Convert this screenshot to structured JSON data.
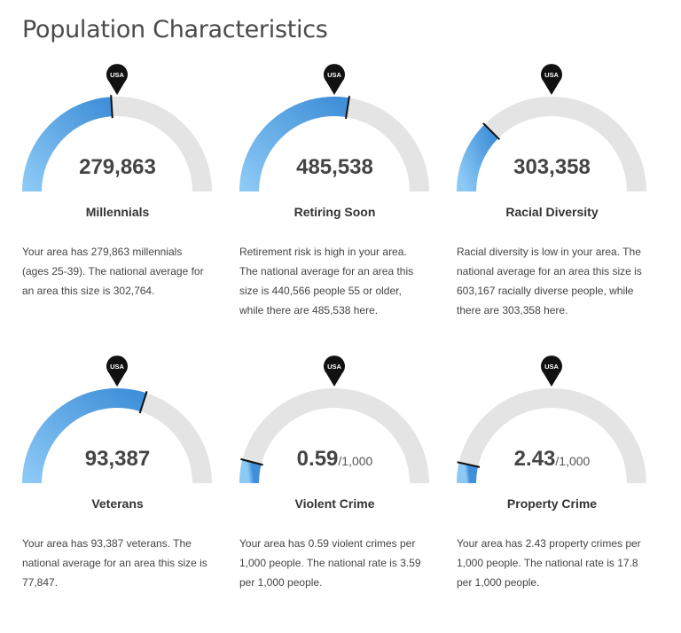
{
  "page": {
    "title": "Population Characteristics"
  },
  "marker_label": "USA",
  "colors": {
    "fill_light": "#8cc9f5",
    "fill_dark": "#3f8fd9",
    "track": "#e4e4e4",
    "pin": "#111111"
  },
  "cards": [
    {
      "value": "279,863",
      "unit": "",
      "label": "Millennials",
      "description": "Your area has 279,863 millennials (ages 25-39). The national average for an area this size is 302,764.",
      "fill_fraction": 0.48,
      "national_fraction": 0.5
    },
    {
      "value": "485,538",
      "unit": "",
      "label": "Retiring Soon",
      "description": "Retirement risk is high in your area. The national average for an area this size is 440,566 people 55 or older, while there are 485,538 here.",
      "fill_fraction": 0.55,
      "national_fraction": 0.5
    },
    {
      "value": "303,358",
      "unit": "",
      "label": "Racial Diversity",
      "description": "Racial diversity is low in your area. The national average for an area this size is 603,167 racially diverse people, while there are 303,358 here.",
      "fill_fraction": 0.25,
      "national_fraction": 0.5
    },
    {
      "value": "93,387",
      "unit": "",
      "label": "Veterans",
      "description": "Your area has 93,387 veterans. The national average for an area this size is 77,847.",
      "fill_fraction": 0.6,
      "national_fraction": 0.5
    },
    {
      "value": "0.59",
      "unit": "/1,000",
      "label": "Violent Crime",
      "description": "Your area has 0.59 violent crimes per 1,000 people. The national rate is 3.59 per 1,000 people.",
      "fill_fraction": 0.08,
      "national_fraction": 0.5
    },
    {
      "value": "2.43",
      "unit": "/1,000",
      "label": "Property Crime",
      "description": "Your area has 2.43 property crimes per 1,000 people. The national rate is 17.8 per 1,000 people.",
      "fill_fraction": 0.07,
      "national_fraction": 0.5
    }
  ]
}
